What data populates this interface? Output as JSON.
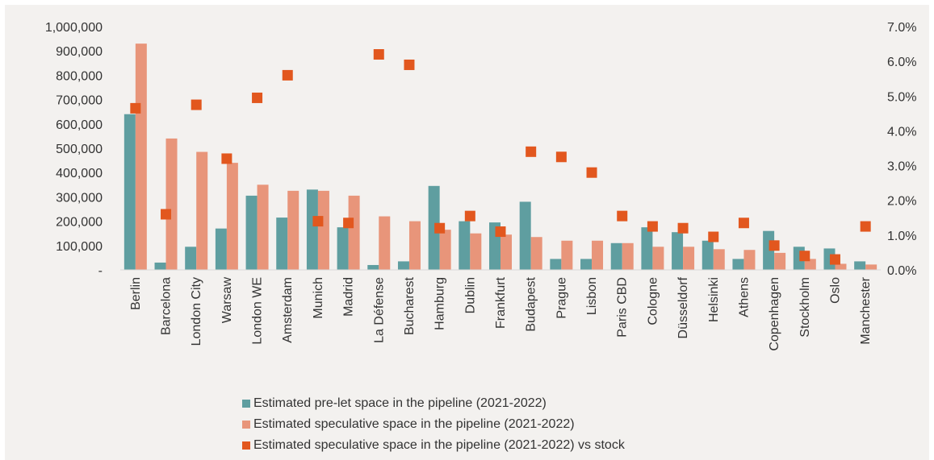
{
  "chart_data": {
    "type": "bar",
    "categories": [
      "Berlin",
      "Barcelona",
      "London City",
      "Warsaw",
      "London WE",
      "Amsterdam",
      "Munich",
      "Madrid",
      "La Défense",
      "Bucharest",
      "Hamburg",
      "Dublin",
      "Frankfurt",
      "Budapest",
      "Prague",
      "Lisbon",
      "Paris CBD",
      "Cologne",
      "Düsseldorf",
      "Helsinki",
      "Athens",
      "Copenhagen",
      "Stockholm",
      "Oslo",
      "Manchester"
    ],
    "series": [
      {
        "name": "Estimated pre-let space in the pipeline (2021-2022)",
        "type": "bar",
        "axis": "left",
        "color": "#5f9ea0",
        "values": [
          640000,
          30000,
          95000,
          170000,
          305000,
          215000,
          330000,
          175000,
          20000,
          35000,
          345000,
          200000,
          195000,
          280000,
          45000,
          45000,
          110000,
          175000,
          155000,
          120000,
          45000,
          160000,
          95000,
          88000,
          35000
        ]
      },
      {
        "name": "Estimated speculative space in the pipeline (2021-2022)",
        "type": "bar",
        "axis": "left",
        "color": "#e8957a",
        "values": [
          930000,
          540000,
          485000,
          440000,
          350000,
          325000,
          325000,
          305000,
          220000,
          200000,
          165000,
          150000,
          145000,
          135000,
          120000,
          120000,
          110000,
          95000,
          95000,
          85000,
          82000,
          70000,
          45000,
          25000,
          22000
        ]
      },
      {
        "name": "Estimated speculative space in the pipeline (2021-2022) vs stock",
        "type": "scatter",
        "axis": "right",
        "color": "#e2571e",
        "values": [
          4.65,
          1.6,
          4.75,
          3.2,
          4.95,
          5.6,
          1.4,
          1.35,
          6.2,
          5.9,
          1.2,
          1.55,
          1.1,
          3.4,
          3.25,
          2.8,
          1.55,
          1.25,
          1.2,
          0.95,
          1.35,
          0.7,
          0.4,
          0.3,
          1.25
        ]
      }
    ],
    "left_axis": {
      "ylim": [
        0,
        1000000
      ],
      "ticks": [
        "-",
        "100,000",
        "200,000",
        "300,000",
        "400,000",
        "500,000",
        "600,000",
        "700,000",
        "800,000",
        "900,000",
        "1,000,000"
      ]
    },
    "right_axis": {
      "ylim": [
        0,
        7
      ],
      "ticks": [
        "0.0%",
        "1.0%",
        "2.0%",
        "3.0%",
        "4.0%",
        "5.0%",
        "6.0%",
        "7.0%"
      ]
    },
    "grid": false,
    "legend_position": "bottom"
  }
}
